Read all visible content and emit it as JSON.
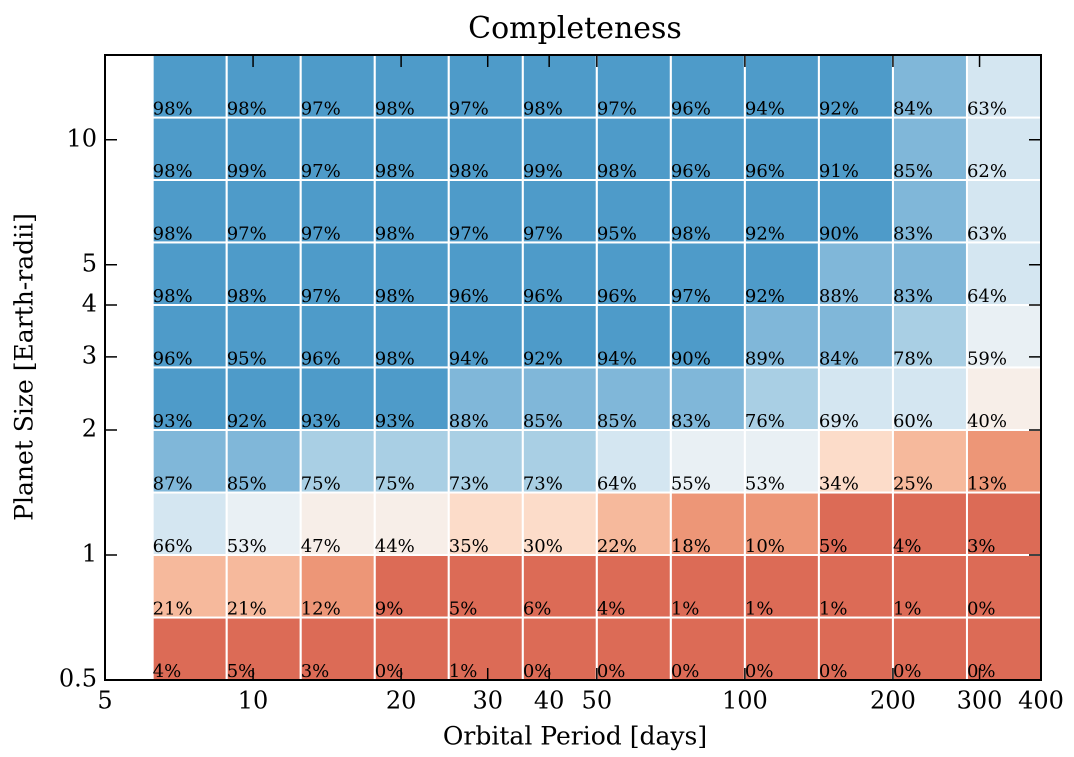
{
  "chart_data": {
    "type": "heatmap",
    "title": "Completeness",
    "x_label": "Orbital Period [days]",
    "y_label": "Planet Size [Earth-radii]",
    "x_log": true,
    "y_log": true,
    "xlim": [
      5,
      400
    ],
    "ylim": [
      0.5,
      16
    ],
    "xticks": [
      5,
      10,
      20,
      30,
      40,
      50,
      100,
      200,
      300,
      400
    ],
    "yticks": [
      0.5,
      1,
      2,
      3,
      4,
      5,
      10
    ],
    "x_bins": [
      6.25,
      8.84,
      12.5,
      17.68,
      25,
      35.36,
      50,
      70.71,
      100,
      141.42,
      200,
      282.84,
      400
    ],
    "y_bins": [
      0.5,
      0.707,
      1,
      1.414,
      2,
      2.83,
      4,
      5.66,
      8,
      11.31,
      16
    ],
    "color_bins": [
      0,
      10,
      20,
      30,
      40,
      50,
      60,
      70,
      80,
      90,
      100
    ],
    "colors": [
      "#dc6b56",
      "#ed9677",
      "#f6b99c",
      "#fcdcc9",
      "#f7eee8",
      "#e9f0f4",
      "#d4e6f1",
      "#a9cfe4",
      "#80b7d9",
      "#4e9bc9"
    ],
    "values": [
      [
        4,
        5,
        3,
        0,
        1,
        0,
        0,
        0,
        0,
        0,
        0,
        0
      ],
      [
        21,
        21,
        12,
        9,
        5,
        6,
        4,
        1,
        1,
        1,
        1,
        0
      ],
      [
        66,
        53,
        47,
        44,
        35,
        30,
        22,
        18,
        10,
        5,
        4,
        3
      ],
      [
        87,
        85,
        75,
        75,
        73,
        73,
        64,
        55,
        53,
        34,
        25,
        13
      ],
      [
        93,
        92,
        93,
        93,
        88,
        85,
        85,
        83,
        76,
        69,
        60,
        40
      ],
      [
        96,
        95,
        96,
        98,
        94,
        92,
        94,
        90,
        89,
        84,
        78,
        59
      ],
      [
        98,
        98,
        97,
        98,
        96,
        96,
        96,
        97,
        92,
        88,
        83,
        64
      ],
      [
        98,
        97,
        97,
        98,
        97,
        97,
        95,
        98,
        92,
        90,
        83,
        63
      ],
      [
        98,
        99,
        97,
        98,
        98,
        99,
        98,
        96,
        96,
        91,
        85,
        62
      ],
      [
        98,
        98,
        97,
        98,
        97,
        98,
        97,
        96,
        94,
        92,
        84,
        63
      ]
    ],
    "value_labels": [
      [
        "4%",
        "5%",
        "3%",
        "0%",
        "1%",
        "0%",
        "0%",
        "0%",
        "0%",
        "0%",
        "0%",
        "0%"
      ],
      [
        "21%",
        "21%",
        "12%",
        "9%",
        "5%",
        "6%",
        "4%",
        "1%",
        "1%",
        "1%",
        "1%",
        "0%"
      ],
      [
        "66%",
        "53%",
        "47%",
        "44%",
        "35%",
        "30%",
        "22%",
        "18%",
        "10%",
        "5%",
        "4%",
        "3%"
      ],
      [
        "87%",
        "85%",
        "75%",
        "75%",
        "73%",
        "73%",
        "64%",
        "55%",
        "53%",
        "34%",
        "25%",
        "13%"
      ],
      [
        "93%",
        "92%",
        "93%",
        "93%",
        "88%",
        "85%",
        "85%",
        "83%",
        "76%",
        "69%",
        "60%",
        "40%"
      ],
      [
        "96%",
        "95%",
        "96%",
        "98%",
        "94%",
        "92%",
        "94%",
        "90%",
        "89%",
        "84%",
        "78%",
        "59%"
      ],
      [
        "98%",
        "98%",
        "97%",
        "98%",
        "96%",
        "96%",
        "96%",
        "97%",
        "92%",
        "88%",
        "83%",
        "64%"
      ],
      [
        "98%",
        "97%",
        "97%",
        "98%",
        "97%",
        "97%",
        "95%",
        "98%",
        "92%",
        "90%",
        "83%",
        "63%"
      ],
      [
        "98%",
        "99%",
        "97%",
        "98%",
        "98%",
        "99%",
        "98%",
        "96%",
        "96%",
        "91%",
        "85%",
        "62%"
      ],
      [
        "98%",
        "98%",
        "97%",
        "98%",
        "97%",
        "98%",
        "97%",
        "96%",
        "94%",
        "92%",
        "84%",
        "63%"
      ]
    ]
  }
}
